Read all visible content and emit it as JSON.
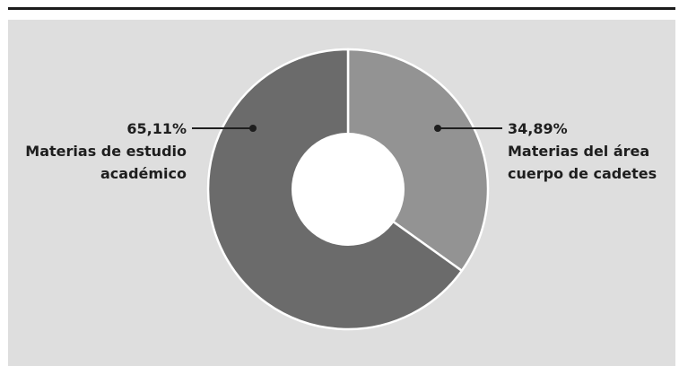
{
  "chart_data": {
    "type": "pie",
    "style": "donut",
    "slices": [
      {
        "value": 34.89,
        "value_label": "34,89%",
        "label_lines": [
          "Materias del área",
          "cuerpo de cadetes"
        ],
        "color": "#939393"
      },
      {
        "value": 65.11,
        "value_label": "65,11%",
        "label_lines": [
          "Materias de estudio",
          "académico"
        ],
        "color": "#6b6b6b"
      }
    ],
    "colors": {
      "background": "#dedede",
      "rule": "#1b1b1b",
      "separator": "#ffffff",
      "text": "#1e1e1e"
    }
  }
}
